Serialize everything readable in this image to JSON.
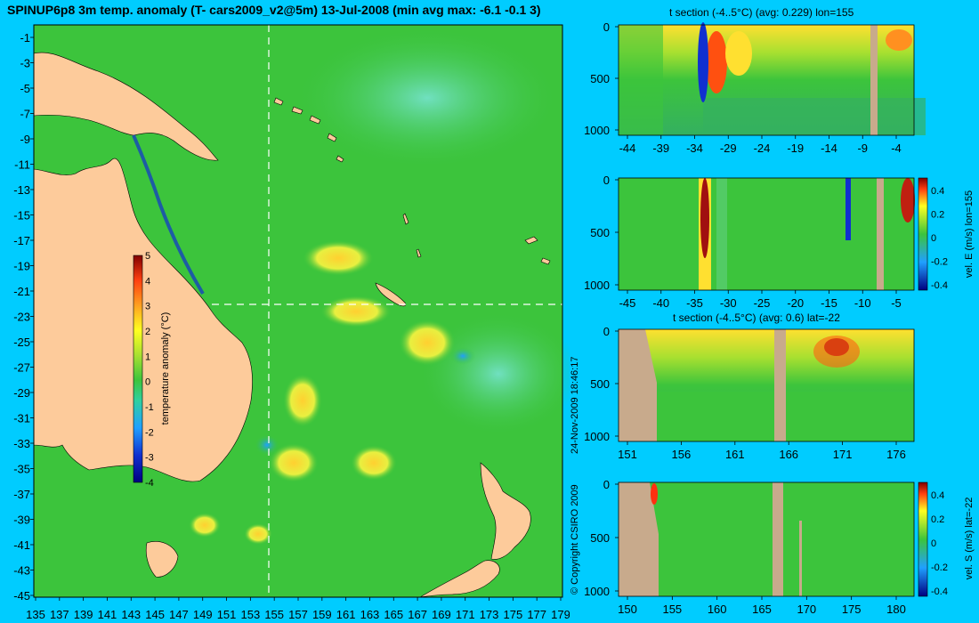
{
  "title": "SPINUP6p8 3m temp. anomaly (T- cars2009_v2@5m) 13-Jul-2008 (min avg max: -6.1 -0.1 3)",
  "copyright": "© Copyright CSIRO 2009",
  "timestamp": "24-Nov-2009 18:46:17",
  "colors": {
    "background": "#00ccff",
    "ocean": "#3cc43c",
    "land": "#fdcb9b",
    "section_land": "#c8aa8c"
  },
  "chart_data": [
    {
      "id": "map",
      "type": "heatmap",
      "x_ticks": [
        "135",
        "137",
        "139",
        "141",
        "143",
        "145",
        "147",
        "149",
        "151",
        "153",
        "155",
        "157",
        "159",
        "161",
        "163",
        "165",
        "167",
        "169",
        "171",
        "173",
        "175",
        "177",
        "179"
      ],
      "y_ticks": [
        "-1",
        "-3",
        "-5",
        "-7",
        "-9",
        "-11",
        "-13",
        "-15",
        "-17",
        "-19",
        "-21",
        "-23",
        "-25",
        "-27",
        "-29",
        "-31",
        "-33",
        "-35",
        "-37",
        "-39",
        "-41",
        "-43",
        "-45"
      ],
      "xlim": [
        135,
        180
      ],
      "ylim": [
        -45,
        0
      ],
      "section_lines": {
        "lon": 155,
        "lat": -22
      },
      "colorbar": {
        "label": "temperature anomaly (°C)",
        "ticks": [
          "5",
          "4",
          "3",
          "2",
          "1",
          "0",
          "-1",
          "-2",
          "-3",
          "-4"
        ],
        "range": [
          -4,
          5
        ]
      }
    },
    {
      "id": "panel1",
      "type": "heatmap",
      "title": "t section (-4..5°C) (avg: 0.229) lon=155",
      "x_ticks": [
        "-44",
        "-39",
        "-34",
        "-29",
        "-24",
        "-19",
        "-14",
        "-9",
        "-4"
      ],
      "y_ticks": [
        "0",
        "500",
        "1000"
      ]
    },
    {
      "id": "panel2",
      "type": "heatmap",
      "x_ticks": [
        "-45",
        "-40",
        "-35",
        "-30",
        "-25",
        "-20",
        "-15",
        "-10",
        "-5"
      ],
      "y_ticks": [
        "0",
        "500",
        "1000"
      ],
      "colorbar": {
        "label": "vel. E (m/s) lon=155",
        "ticks": [
          "0.4",
          "0.2",
          "0",
          "-0.2",
          "-0.4"
        ]
      }
    },
    {
      "id": "panel3",
      "type": "heatmap",
      "title": "t section (-4..5°C) (avg: 0.6) lat=-22",
      "x_ticks": [
        "151",
        "156",
        "161",
        "166",
        "171",
        "176"
      ],
      "y_ticks": [
        "0",
        "500",
        "1000"
      ]
    },
    {
      "id": "panel4",
      "type": "heatmap",
      "x_ticks": [
        "150",
        "155",
        "160",
        "165",
        "170",
        "175",
        "180"
      ],
      "y_ticks": [
        "0",
        "500",
        "1000"
      ],
      "colorbar": {
        "label": "vel. S (m/s) lat=-22",
        "ticks": [
          "0.4",
          "0.2",
          "0",
          "-0.2",
          "-0.4"
        ]
      }
    }
  ]
}
